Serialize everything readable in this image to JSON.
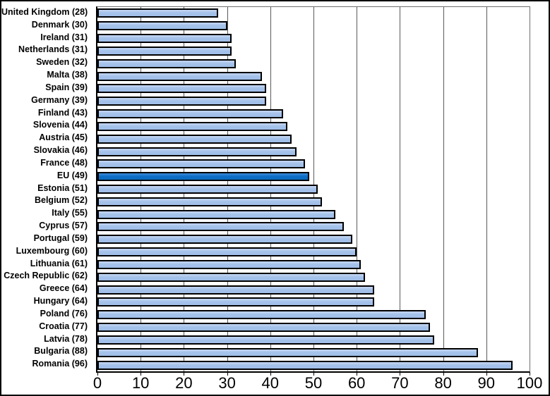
{
  "chart_data": {
    "type": "bar",
    "orientation": "horizontal",
    "title": "",
    "xlabel": "",
    "ylabel": "",
    "xlim": [
      0,
      100
    ],
    "xticks": [
      0,
      10,
      20,
      30,
      40,
      50,
      60,
      70,
      80,
      90,
      100
    ],
    "grid": true,
    "legend": "none",
    "bar_color": "#A5C2EA",
    "highlight_color": "#0D6FC6",
    "bar_border_color": "#000000",
    "categories": [
      "United Kingdom",
      "Denmark",
      "Ireland",
      "Netherlands",
      "Sweden",
      "Malta",
      "Spain",
      "Germany",
      "Finland",
      "Slovenia",
      "Austria",
      "Slovakia",
      "France",
      "EU",
      "Estonia",
      "Belgium",
      "Italy",
      "Cyprus",
      "Portugal",
      "Luxembourg",
      "Lithuania",
      "Czech Republic",
      "Greece",
      "Hungary",
      "Poland",
      "Croatia",
      "Latvia",
      "Bulgaria",
      "Romania"
    ],
    "values": [
      28,
      30,
      31,
      31,
      32,
      38,
      39,
      39,
      43,
      44,
      45,
      46,
      48,
      49,
      51,
      52,
      55,
      57,
      59,
      60,
      61,
      62,
      64,
      64,
      76,
      77,
      78,
      88,
      96
    ],
    "rows": [
      {
        "label": "United Kingdom (28)",
        "value": 28,
        "highlight": false
      },
      {
        "label": "Denmark (30)",
        "value": 30,
        "highlight": false
      },
      {
        "label": "Ireland (31)",
        "value": 31,
        "highlight": false
      },
      {
        "label": "Netherlands (31)",
        "value": 31,
        "highlight": false
      },
      {
        "label": "Sweden (32)",
        "value": 32,
        "highlight": false
      },
      {
        "label": "Malta (38)",
        "value": 38,
        "highlight": false
      },
      {
        "label": "Spain (39)",
        "value": 39,
        "highlight": false
      },
      {
        "label": "Germany (39)",
        "value": 39,
        "highlight": false
      },
      {
        "label": "Finland (43)",
        "value": 43,
        "highlight": false
      },
      {
        "label": "Slovenia (44)",
        "value": 44,
        "highlight": false
      },
      {
        "label": "Austria (45)",
        "value": 45,
        "highlight": false
      },
      {
        "label": "Slovakia (46)",
        "value": 46,
        "highlight": false
      },
      {
        "label": "France (48)",
        "value": 48,
        "highlight": false
      },
      {
        "label": "EU (49)",
        "value": 49,
        "highlight": true
      },
      {
        "label": "Estonia (51)",
        "value": 51,
        "highlight": false
      },
      {
        "label": "Belgium (52)",
        "value": 52,
        "highlight": false
      },
      {
        "label": "Italy (55)",
        "value": 55,
        "highlight": false
      },
      {
        "label": "Cyprus (57)",
        "value": 57,
        "highlight": false
      },
      {
        "label": "Portugal (59)",
        "value": 59,
        "highlight": false
      },
      {
        "label": "Luxembourg (60)",
        "value": 60,
        "highlight": false
      },
      {
        "label": "Lithuania (61)",
        "value": 61,
        "highlight": false
      },
      {
        "label": "Czech Republic (62)",
        "value": 62,
        "highlight": false
      },
      {
        "label": "Greece (64)",
        "value": 64,
        "highlight": false
      },
      {
        "label": "Hungary (64)",
        "value": 64,
        "highlight": false
      },
      {
        "label": "Poland (76)",
        "value": 76,
        "highlight": false
      },
      {
        "label": "Croatia (77)",
        "value": 77,
        "highlight": false
      },
      {
        "label": "Latvia (78)",
        "value": 78,
        "highlight": false
      },
      {
        "label": "Bulgaria (88)",
        "value": 88,
        "highlight": false
      },
      {
        "label": "Romania (96)",
        "value": 96,
        "highlight": false
      }
    ]
  }
}
